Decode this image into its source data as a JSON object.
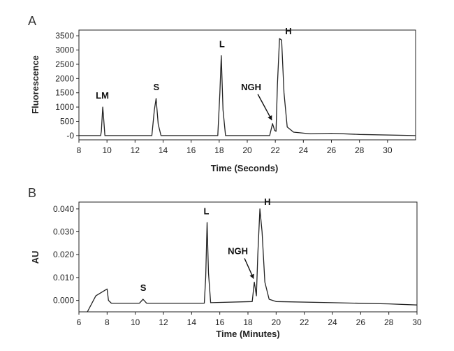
{
  "chart_data": [
    {
      "panel": "A",
      "type": "line",
      "xlabel": "Time (Seconds)",
      "ylabel": "Fluorescence",
      "xlim": [
        8,
        32
      ],
      "ylim": [
        -150,
        3700
      ],
      "xticks": [
        "8",
        "10",
        "12",
        "14",
        "16",
        "18",
        "20",
        "22",
        "24",
        "26",
        "28",
        "30"
      ],
      "yticks": [
        "-0",
        "500",
        "1000",
        "1500",
        "2000",
        "2500",
        "3000",
        "3500"
      ],
      "series": [
        {
          "x": [
            8,
            9.55,
            9.6,
            9.7,
            9.75,
            9.85,
            10.0,
            13.2,
            13.38,
            13.5,
            13.65,
            13.85,
            17.9,
            18.05,
            18.15,
            18.27,
            18.45,
            21.6,
            21.8,
            21.95,
            22.05,
            22.15,
            22.3,
            22.45,
            22.62,
            22.85,
            23.3,
            24.5,
            26,
            28,
            32
          ],
          "y": [
            0,
            0,
            150,
            1000,
            700,
            0,
            0,
            0,
            900,
            1300,
            400,
            0,
            0,
            1500,
            2800,
            900,
            0,
            0,
            420,
            180,
            150,
            1800,
            3400,
            3350,
            1500,
            300,
            120,
            60,
            80,
            40,
            0
          ]
        }
      ],
      "annotations": [
        {
          "text": "LM",
          "x": 9.7,
          "y": 1000
        },
        {
          "text": "S",
          "x": 13.5,
          "y": 1300
        },
        {
          "text": "L",
          "x": 18.15,
          "y": 2800
        },
        {
          "text": "NGH",
          "x": 21.8,
          "y": 420,
          "arrow": true
        },
        {
          "text": "H",
          "x": 22.4,
          "y": 3400
        }
      ]
    },
    {
      "panel": "B",
      "type": "line",
      "xlabel": "Time (Minutes)",
      "ylabel": "AU",
      "xlim": [
        6,
        30
      ],
      "ylim": [
        -0.005,
        0.043
      ],
      "xticks": [
        "6",
        "8",
        "10",
        "12",
        "14",
        "16",
        "18",
        "20",
        "22",
        "24",
        "26",
        "28",
        "30"
      ],
      "yticks": [
        "0.000",
        "0.010",
        "0.020",
        "0.030",
        "0.040"
      ],
      "series": [
        {
          "x": [
            6.6,
            7.2,
            8.0,
            8.1,
            8.3,
            10.3,
            10.55,
            10.8,
            14.9,
            15.0,
            15.1,
            15.2,
            15.35,
            18.3,
            18.45,
            18.6,
            18.7,
            18.85,
            19.0,
            19.2,
            19.5,
            20,
            24,
            28,
            30
          ],
          "y": [
            -0.005,
            0.002,
            0.005,
            0.0,
            -0.0012,
            -0.0012,
            0.0005,
            -0.0012,
            -0.0012,
            0.01,
            0.034,
            0.012,
            -0.001,
            -0.0005,
            0.008,
            0.002,
            0.02,
            0.04,
            0.03,
            0.008,
            0.0005,
            -0.0005,
            -0.001,
            -0.0015,
            -0.002
          ]
        }
      ],
      "annotations": [
        {
          "text": "S",
          "x": 10.55,
          "y": 0.0005
        },
        {
          "text": "L",
          "x": 15.1,
          "y": 0.034
        },
        {
          "text": "NGH",
          "x": 18.45,
          "y": 0.008,
          "arrow": true
        },
        {
          "text": "H",
          "x": 18.85,
          "y": 0.04
        }
      ]
    }
  ]
}
